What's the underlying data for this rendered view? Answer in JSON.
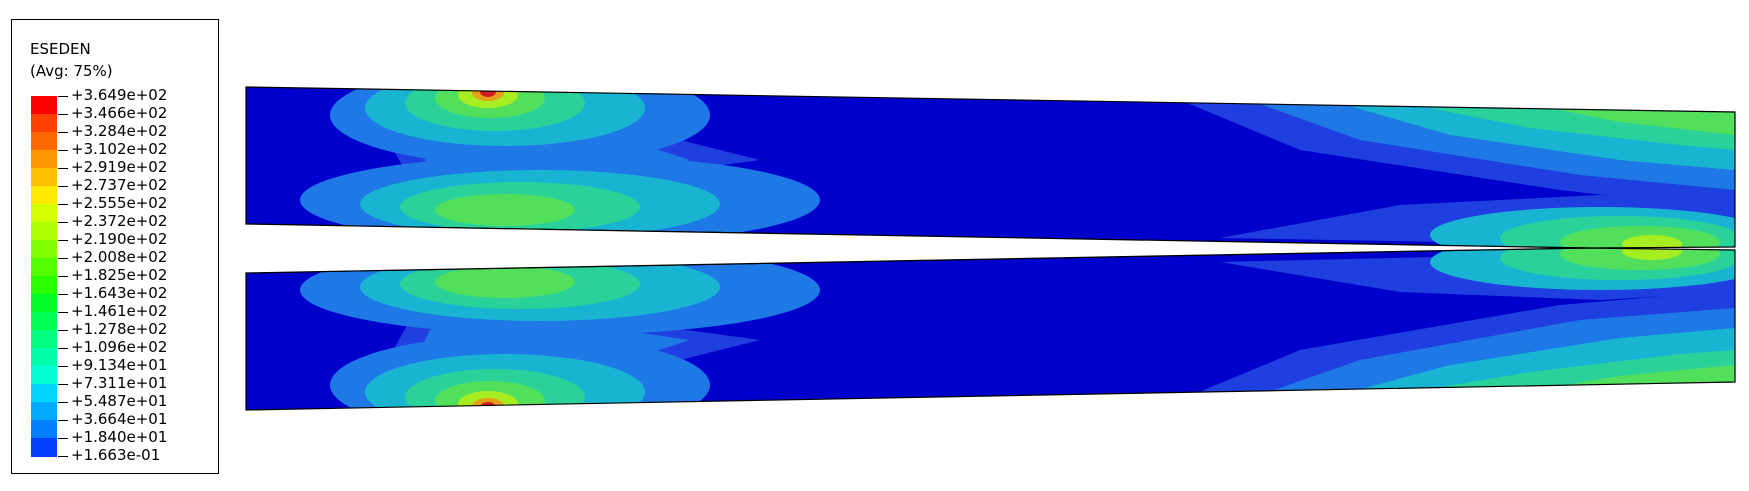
{
  "legend": {
    "title": "ESEDEN",
    "subtitle": "(Avg: 75%)",
    "labels": [
      "+3.649e+02",
      "+3.466e+02",
      "+3.284e+02",
      "+3.102e+02",
      "+2.919e+02",
      "+2.737e+02",
      "+2.555e+02",
      "+2.372e+02",
      "+2.190e+02",
      "+2.008e+02",
      "+1.825e+02",
      "+1.643e+02",
      "+1.461e+02",
      "+1.278e+02",
      "+1.096e+02",
      "+9.134e+01",
      "+7.311e+01",
      "+5.487e+01",
      "+3.664e+01",
      "+1.840e+01",
      "+1.663e-01"
    ],
    "colors": [
      "#ff0000",
      "#ff4000",
      "#ff6a00",
      "#ff9500",
      "#ffbf00",
      "#ffea00",
      "#d4ff00",
      "#aaff00",
      "#80ff00",
      "#55ff00",
      "#2aff00",
      "#00ff2a",
      "#00ff55",
      "#00ff80",
      "#00ffaa",
      "#00ffd4",
      "#00d4ff",
      "#00aaff",
      "#0080ff",
      "#0040ff"
    ]
  },
  "contour_colors": {
    "base": "#0000cd",
    "l1": "#1f3fe0",
    "l2": "#1e78e6",
    "l3": "#19b4d2",
    "l4": "#2ad29a",
    "l5": "#52e05c",
    "l6": "#a6ee22",
    "hot": "#e6a01a",
    "max": "#d21e1e"
  }
}
